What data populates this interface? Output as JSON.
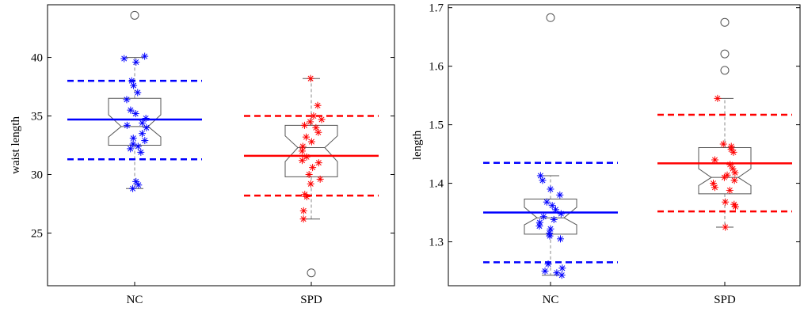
{
  "chart_data": [
    {
      "type": "boxplot",
      "title": "",
      "xlabel": "",
      "ylabel": "waist length",
      "ylim": [
        20.5,
        44.5
      ],
      "yticks": [
        25,
        30,
        35,
        40
      ],
      "categories": [
        "NC",
        "SPD"
      ],
      "groups": [
        {
          "category": "NC",
          "color": "#0000ff",
          "box": {
            "q1": 32.5,
            "median": 34.1,
            "q3": 36.5,
            "notch_low": 33.2,
            "notch_high": 35.1,
            "whisker_low": 28.8,
            "whisker_high": 40.0
          },
          "mean": 34.7,
          "sd_lines": [
            31.3,
            38.0
          ],
          "outliers": [
            43.6
          ],
          "points": [
            40.1,
            39.9,
            39.6,
            38.0,
            37.6,
            37.0,
            36.4,
            35.5,
            35.2,
            34.8,
            34.4,
            34.2,
            34.0,
            33.5,
            33.1,
            32.9,
            32.6,
            32.4,
            32.2,
            31.9,
            29.4,
            29.1,
            28.8
          ]
        },
        {
          "category": "SPD",
          "color": "#ff0000",
          "box": {
            "q1": 29.8,
            "median": 32.3,
            "q3": 34.2,
            "notch_low": 31.1,
            "notch_high": 33.3,
            "whisker_low": 26.2,
            "whisker_high": 38.2
          },
          "mean": 31.6,
          "sd_lines": [
            28.2,
            35.0
          ],
          "outliers": [
            21.6
          ],
          "points": [
            38.2,
            35.9,
            35.0,
            34.7,
            34.5,
            34.2,
            34.0,
            33.6,
            33.2,
            32.8,
            32.4,
            32.0,
            31.5,
            31.2,
            31.0,
            30.6,
            30.0,
            29.6,
            29.2,
            28.3,
            28.1,
            26.9,
            26.2
          ]
        }
      ]
    },
    {
      "type": "boxplot",
      "title": "",
      "xlabel": "",
      "ylabel": "length",
      "ylim": [
        1.225,
        1.705
      ],
      "yticks": [
        1.3,
        1.4,
        1.5,
        1.6,
        1.7
      ],
      "categories": [
        "NC",
        "SPD"
      ],
      "groups": [
        {
          "category": "NC",
          "color": "#0000ff",
          "box": {
            "q1": 1.313,
            "median": 1.341,
            "q3": 1.373,
            "notch_low": 1.329,
            "notch_high": 1.359,
            "whisker_low": 1.243,
            "whisker_high": 1.413
          },
          "mean": 1.35,
          "sd_lines": [
            1.265,
            1.435
          ],
          "outliers": [
            1.683
          ],
          "points": [
            1.413,
            1.405,
            1.39,
            1.38,
            1.368,
            1.362,
            1.355,
            1.348,
            1.343,
            1.338,
            1.333,
            1.327,
            1.322,
            1.315,
            1.31,
            1.305,
            1.262,
            1.255,
            1.25,
            1.247,
            1.243
          ]
        },
        {
          "category": "SPD",
          "color": "#ff0000",
          "box": {
            "q1": 1.382,
            "median": 1.41,
            "q3": 1.461,
            "notch_low": 1.396,
            "notch_high": 1.425,
            "whisker_low": 1.325,
            "whisker_high": 1.545
          },
          "mean": 1.434,
          "sd_lines": [
            1.352,
            1.517
          ],
          "outliers": [
            1.675,
            1.621,
            1.593
          ],
          "points": [
            1.545,
            1.467,
            1.463,
            1.458,
            1.453,
            1.44,
            1.432,
            1.425,
            1.418,
            1.414,
            1.41,
            1.405,
            1.4,
            1.393,
            1.388,
            1.368,
            1.364,
            1.36,
            1.325
          ]
        }
      ]
    }
  ]
}
